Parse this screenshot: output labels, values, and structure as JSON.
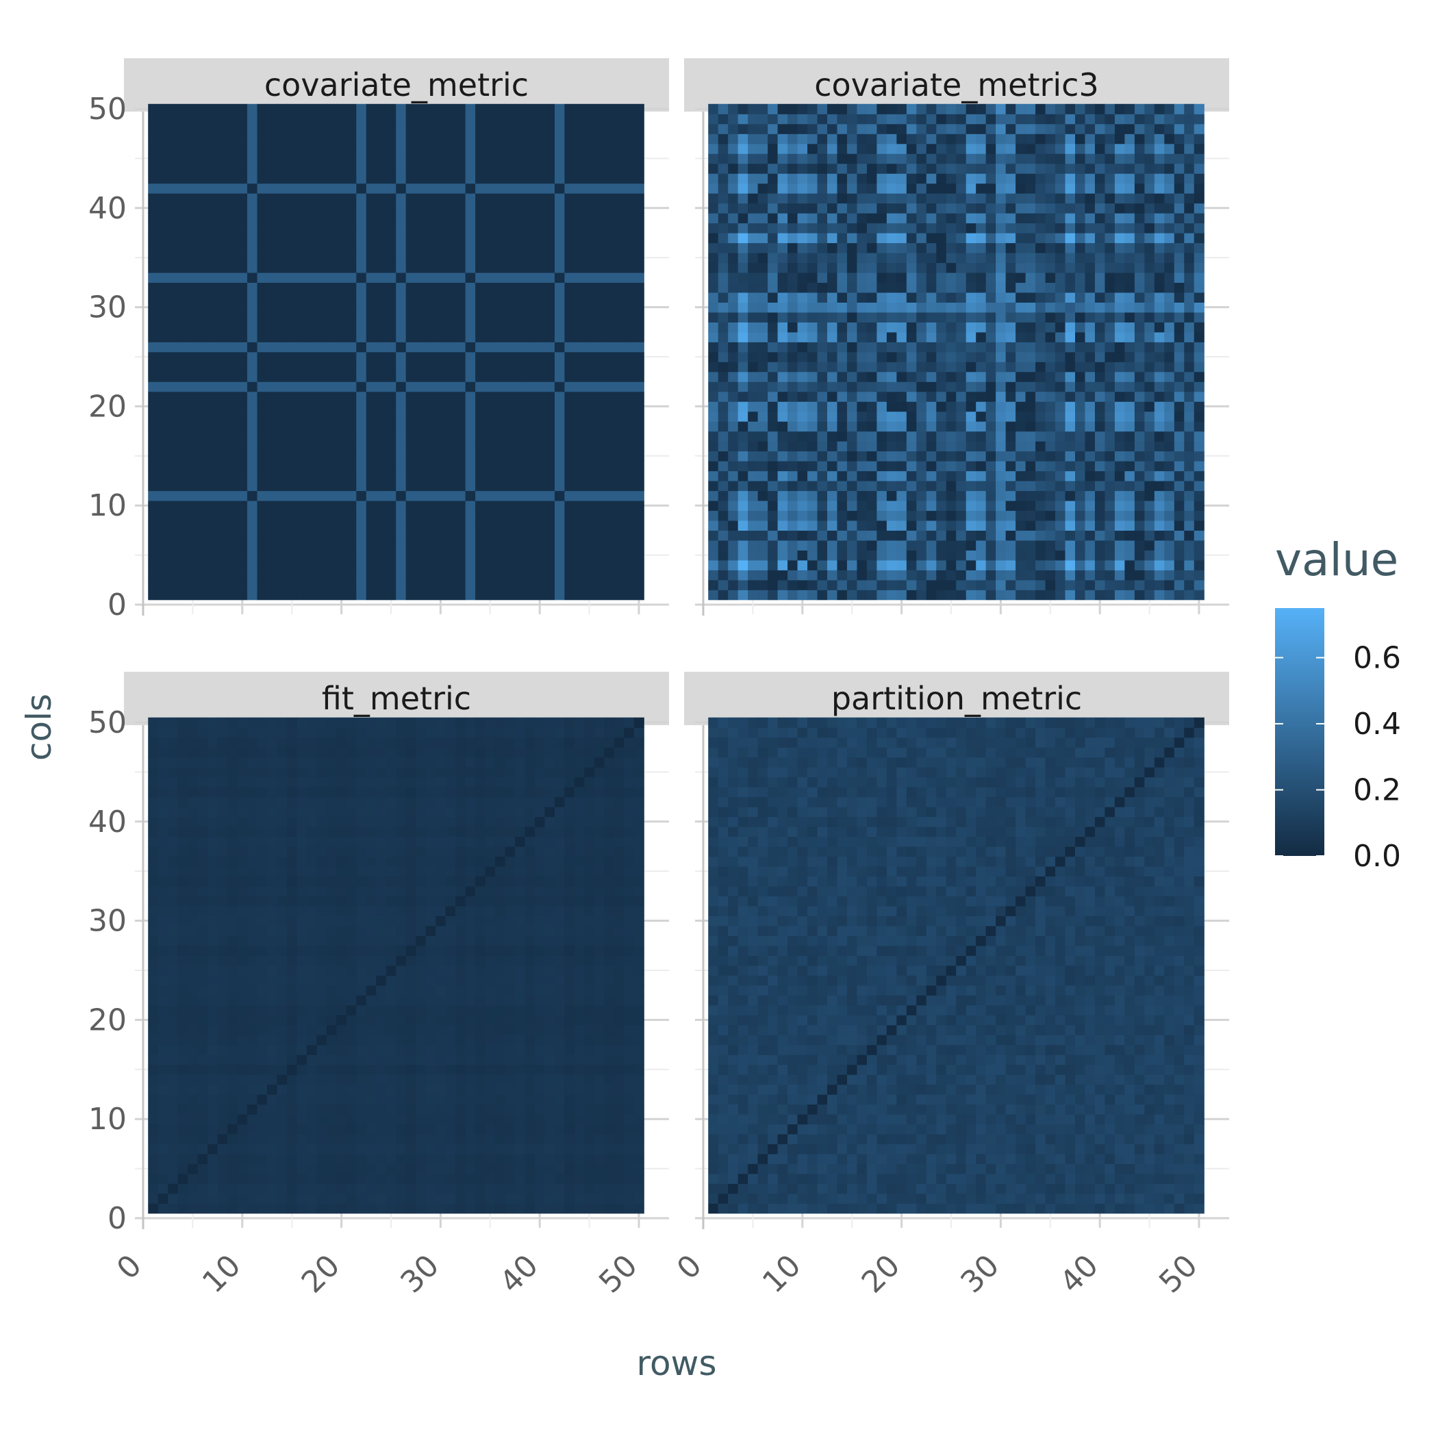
{
  "chart_data": {
    "type": "heatmap",
    "layout": "facet grid, 2 columns x 2 rows",
    "x_label": "rows",
    "y_label": "cols",
    "x_range": [
      0,
      50
    ],
    "y_range": [
      0,
      50
    ],
    "x_ticks": [
      "0",
      "10",
      "20",
      "30",
      "40",
      "50"
    ],
    "y_ticks": [
      "0",
      "10",
      "20",
      "30",
      "40",
      "50"
    ],
    "grid": true,
    "legend": {
      "title": "value",
      "placement": "right",
      "colormap": [
        "#132b43",
        "#56b1f7"
      ],
      "range": [
        0,
        0.75
      ],
      "ticks": [
        "0.0",
        "0.2",
        "0.4",
        "0.6"
      ]
    },
    "facets": [
      {
        "title": "covariate_metric",
        "matrix_size": 50,
        "description_values": {
          "base_value": 0.02,
          "highlight_indices": [
            11,
            22,
            26,
            33,
            42
          ],
          "highlight_value": 0.28
        }
      },
      {
        "title": "covariate_metric3",
        "matrix_size": 50,
        "description_values": {
          "value_range": [
            0.0,
            0.75
          ],
          "pattern": "block structure"
        }
      },
      {
        "title": "fit_metric",
        "matrix_size": 50,
        "description_values": {
          "value_range": [
            0.0,
            0.12
          ],
          "diagonal_value": 0.0
        }
      },
      {
        "title": "partition_metric",
        "matrix_size": 50,
        "description_values": {
          "value_range": [
            0.05,
            0.22
          ],
          "diagonal_value": 0.0
        }
      }
    ]
  }
}
